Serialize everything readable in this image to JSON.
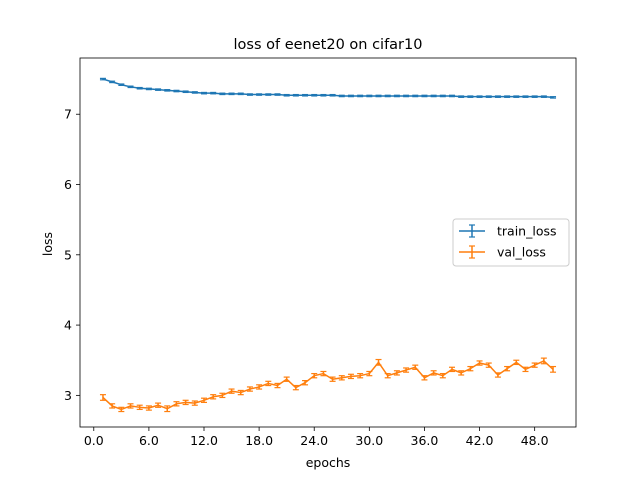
{
  "chart_data": {
    "type": "line",
    "title": "loss of eenet20 on cifar10",
    "xlabel": "epochs",
    "ylabel": "loss",
    "xlim": [
      -1.5,
      52.5
    ],
    "ylim": [
      2.55,
      7.8
    ],
    "xticks": [
      0,
      6,
      12,
      18,
      24,
      30,
      36,
      42,
      48
    ],
    "xtick_labels": [
      "0.0",
      "6.0",
      "12.0",
      "18.0",
      "24.0",
      "30.0",
      "36.0",
      "42.0",
      "48.0"
    ],
    "yticks": [
      3,
      4,
      5,
      6,
      7
    ],
    "ytick_labels": [
      "3",
      "4",
      "5",
      "6",
      "7"
    ],
    "grid": false,
    "legend_position": "center-right",
    "series": [
      {
        "name": "train_loss",
        "color": "#1f77b4",
        "error_bars": true,
        "x": [
          1,
          2,
          3,
          4,
          5,
          6,
          7,
          8,
          9,
          10,
          11,
          12,
          13,
          14,
          15,
          16,
          17,
          18,
          19,
          20,
          21,
          22,
          23,
          24,
          25,
          26,
          27,
          28,
          29,
          30,
          31,
          32,
          33,
          34,
          35,
          36,
          37,
          38,
          39,
          40,
          41,
          42,
          43,
          44,
          45,
          46,
          47,
          48,
          49,
          50
        ],
        "y": [
          7.5,
          7.46,
          7.42,
          7.39,
          7.37,
          7.36,
          7.35,
          7.34,
          7.33,
          7.32,
          7.31,
          7.3,
          7.3,
          7.29,
          7.29,
          7.29,
          7.28,
          7.28,
          7.28,
          7.28,
          7.27,
          7.27,
          7.27,
          7.27,
          7.27,
          7.27,
          7.26,
          7.26,
          7.26,
          7.26,
          7.26,
          7.26,
          7.26,
          7.26,
          7.26,
          7.26,
          7.26,
          7.26,
          7.26,
          7.25,
          7.25,
          7.25,
          7.25,
          7.25,
          7.25,
          7.25,
          7.25,
          7.25,
          7.25,
          7.24
        ],
        "err": [
          0.01,
          0.01,
          0.01,
          0.01,
          0.01,
          0.01,
          0.01,
          0.01,
          0.01,
          0.01,
          0.01,
          0.01,
          0.01,
          0.01,
          0.01,
          0.01,
          0.01,
          0.01,
          0.01,
          0.01,
          0.01,
          0.01,
          0.01,
          0.01,
          0.01,
          0.01,
          0.01,
          0.01,
          0.01,
          0.01,
          0.01,
          0.01,
          0.01,
          0.01,
          0.01,
          0.01,
          0.01,
          0.01,
          0.01,
          0.01,
          0.01,
          0.01,
          0.01,
          0.01,
          0.01,
          0.01,
          0.01,
          0.01,
          0.01,
          0.01
        ]
      },
      {
        "name": "val_loss",
        "color": "#ff7f0e",
        "error_bars": true,
        "x": [
          1,
          2,
          3,
          4,
          5,
          6,
          7,
          8,
          9,
          10,
          11,
          12,
          13,
          14,
          15,
          16,
          17,
          18,
          19,
          20,
          21,
          22,
          23,
          24,
          25,
          26,
          27,
          28,
          29,
          30,
          31,
          32,
          33,
          34,
          35,
          36,
          37,
          38,
          39,
          40,
          41,
          42,
          43,
          44,
          45,
          46,
          47,
          48,
          49,
          50
        ],
        "y": [
          2.97,
          2.85,
          2.8,
          2.85,
          2.83,
          2.82,
          2.86,
          2.81,
          2.88,
          2.9,
          2.89,
          2.93,
          2.98,
          3.0,
          3.06,
          3.04,
          3.09,
          3.12,
          3.17,
          3.14,
          3.23,
          3.11,
          3.18,
          3.28,
          3.31,
          3.23,
          3.25,
          3.27,
          3.28,
          3.31,
          3.47,
          3.28,
          3.32,
          3.36,
          3.4,
          3.25,
          3.32,
          3.28,
          3.37,
          3.32,
          3.38,
          3.46,
          3.43,
          3.29,
          3.38,
          3.47,
          3.37,
          3.43,
          3.49,
          3.37
        ],
        "err": [
          0.04,
          0.03,
          0.03,
          0.03,
          0.03,
          0.03,
          0.03,
          0.04,
          0.03,
          0.03,
          0.03,
          0.03,
          0.03,
          0.03,
          0.03,
          0.03,
          0.03,
          0.03,
          0.03,
          0.03,
          0.03,
          0.03,
          0.03,
          0.03,
          0.03,
          0.03,
          0.03,
          0.03,
          0.03,
          0.03,
          0.04,
          0.03,
          0.03,
          0.03,
          0.03,
          0.03,
          0.03,
          0.03,
          0.03,
          0.03,
          0.03,
          0.03,
          0.03,
          0.03,
          0.03,
          0.03,
          0.03,
          0.03,
          0.04,
          0.04
        ]
      }
    ]
  }
}
